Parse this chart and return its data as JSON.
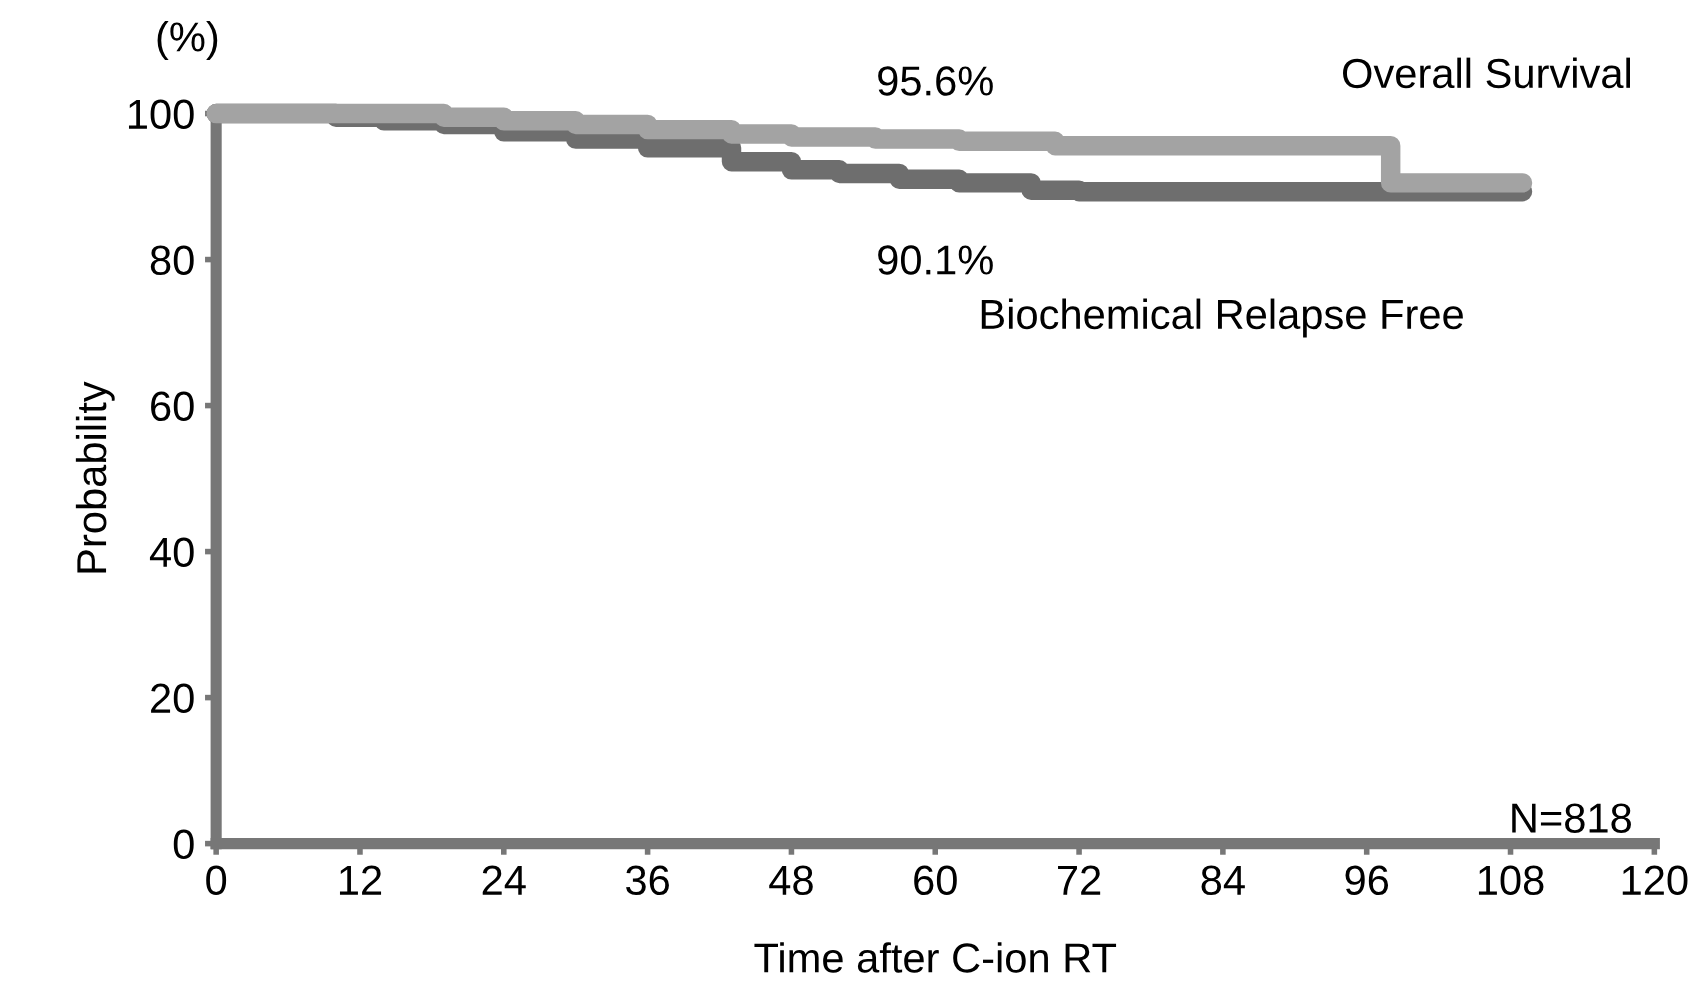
{
  "chart_data": {
    "type": "step",
    "xlabel": "Time after C-ion RT",
    "ylabel": "Probability",
    "xlim": [
      0,
      120
    ],
    "xticks": [
      0,
      12,
      24,
      36,
      48,
      60,
      72,
      84,
      96,
      108,
      120
    ],
    "ylim": [
      0,
      100
    ],
    "yticks": [
      0,
      20,
      40,
      60,
      80,
      100
    ],
    "grid": false,
    "legend": false,
    "marker": "none",
    "line_style": "solid",
    "series": [
      {
        "name": "Overall Survival",
        "color": "#a3a3a3",
        "x": [
          0,
          6,
          12,
          19,
          24,
          30,
          36,
          43,
          48,
          55,
          62,
          70,
          78,
          86,
          95.5,
          98,
          109
        ],
        "values": [
          100,
          100,
          100,
          99.5,
          99,
          98.5,
          97.8,
          97.2,
          96.8,
          96.5,
          96.2,
          95.6,
          95.6,
          95.6,
          95.6,
          90.5,
          90.5
        ]
      },
      {
        "name": "Biochemical Relapse Free",
        "color": "#6e6e6e",
        "x": [
          0,
          6,
          10,
          14,
          19,
          24,
          30,
          36,
          43,
          48,
          52,
          57,
          62,
          68,
          72,
          80,
          90,
          100,
          109
        ],
        "values": [
          100,
          100,
          99.5,
          99,
          98.5,
          97.5,
          96.5,
          95.3,
          93.4,
          92.3,
          91.8,
          91,
          90.5,
          89.5,
          89.3,
          89.3,
          89.3,
          89.3,
          89.3
        ]
      }
    ],
    "annotations": [
      "(%)",
      {
        "text": "95.6%",
        "x": 60,
        "y": 95.6
      },
      {
        "text": "90.1%",
        "x": 60,
        "y": 90.1
      },
      "N=818"
    ]
  }
}
